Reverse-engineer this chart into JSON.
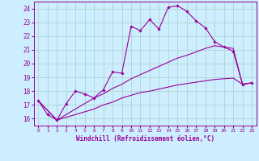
{
  "title": "",
  "xlabel": "Windchill (Refroidissement éolien,°C)",
  "bg_color": "#cceeff",
  "grid_color": "#b0d4cc",
  "line_color": "#990099",
  "x_ticks": [
    0,
    1,
    2,
    3,
    4,
    5,
    6,
    7,
    8,
    9,
    10,
    11,
    12,
    13,
    14,
    15,
    16,
    17,
    18,
    19,
    20,
    21,
    22,
    23
  ],
  "y_ticks": [
    16,
    17,
    18,
    19,
    20,
    21,
    22,
    23,
    24
  ],
  "xlim": [
    -0.5,
    23.5
  ],
  "ylim": [
    15.5,
    24.5
  ],
  "series1_x": [
    0,
    1,
    2,
    3,
    4,
    5,
    6,
    7,
    8,
    9,
    10,
    11,
    12,
    13,
    14,
    15,
    16,
    17,
    18,
    19,
    20,
    21,
    22,
    23
  ],
  "series1_y": [
    17.3,
    16.3,
    15.9,
    17.1,
    18.0,
    17.8,
    17.5,
    18.1,
    19.4,
    19.3,
    22.7,
    22.4,
    23.2,
    22.5,
    24.1,
    24.2,
    23.8,
    23.1,
    22.6,
    21.6,
    21.2,
    20.9,
    18.5,
    18.6
  ],
  "series2_x": [
    0,
    2,
    3,
    4,
    5,
    6,
    7,
    8,
    9,
    10,
    11,
    12,
    13,
    14,
    15,
    16,
    17,
    18,
    19,
    20,
    21,
    22,
    23
  ],
  "series2_y": [
    17.3,
    15.9,
    16.1,
    16.3,
    16.5,
    16.7,
    17.0,
    17.2,
    17.5,
    17.7,
    17.9,
    18.0,
    18.15,
    18.3,
    18.45,
    18.55,
    18.65,
    18.75,
    18.85,
    18.9,
    18.95,
    18.5,
    18.6
  ],
  "series3_x": [
    0,
    2,
    3,
    4,
    5,
    6,
    7,
    8,
    9,
    10,
    11,
    12,
    13,
    14,
    15,
    16,
    17,
    18,
    19,
    20,
    21,
    22,
    23
  ],
  "series3_y": [
    17.3,
    15.9,
    16.3,
    16.7,
    17.1,
    17.5,
    17.8,
    18.2,
    18.5,
    18.9,
    19.2,
    19.5,
    19.8,
    20.1,
    20.4,
    20.6,
    20.85,
    21.1,
    21.3,
    21.2,
    21.1,
    18.5,
    18.6
  ]
}
